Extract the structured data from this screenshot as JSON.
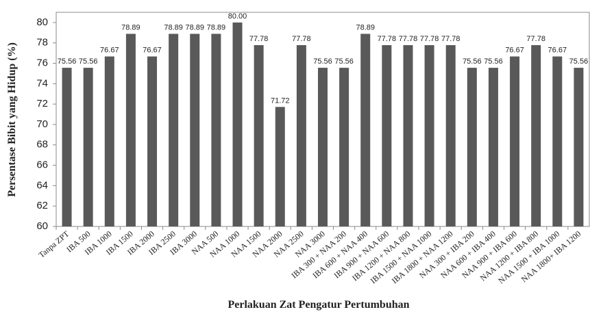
{
  "chart_data": {
    "type": "bar",
    "x_label": "Perlakuan Zat Pengatur Pertumbuhan",
    "y_label": "Persentase Bibit yang Hidup (%)",
    "categories": [
      "Tanpa ZPT",
      "IBA 500",
      "IBA 1000",
      "IBA 1500",
      "IBA 2000",
      "IBA 2500",
      "IBA 3000",
      "NAA 500",
      "NAA 1000",
      "NAA 1500",
      "NAA 2000",
      "NAA 2500",
      "NAA 3000",
      "IBA 300 + NAA 200",
      "IBA 600 + NAA 400",
      "IBA 900 + NAA 600",
      "IBA 1200 + NAA 800",
      "IBA 1500 + NAA 1000",
      "IBA 1800 + NAA 1200",
      "NAA 300 + IBA 200",
      "NAA 600 + IBA 400",
      "NAA 900 + IBA 600",
      "NAA 1200 + IBA 800",
      "NAA 1500 + IBA 1000",
      "NAA 1800+ IBA 1200"
    ],
    "values": [
      75.56,
      75.56,
      76.67,
      78.89,
      76.67,
      78.89,
      78.89,
      78.89,
      80,
      77.78,
      71.72,
      77.78,
      75.56,
      75.56,
      78.89,
      77.78,
      77.78,
      77.78,
      77.78,
      75.56,
      75.56,
      76.67,
      77.78,
      76.67,
      75.56
    ],
    "value_labels": [
      "75.56",
      "75.56",
      "76.67",
      "78.89",
      "76.67",
      "78.89",
      "78.89",
      "78.89",
      "80.00",
      "77.78",
      "71.72",
      "77.78",
      "75.56",
      "75.56",
      "78.89",
      "77.78",
      "77.78",
      "77.78",
      "77.78",
      "75.56",
      "75.56",
      "76.67",
      "77.78",
      "76.67",
      "75.56"
    ],
    "color": "#595959",
    "ylim": [
      60,
      81
    ],
    "yticks": [
      60,
      62,
      64,
      66,
      68,
      70,
      72,
      74,
      76,
      78,
      80
    ],
    "grid": false
  }
}
